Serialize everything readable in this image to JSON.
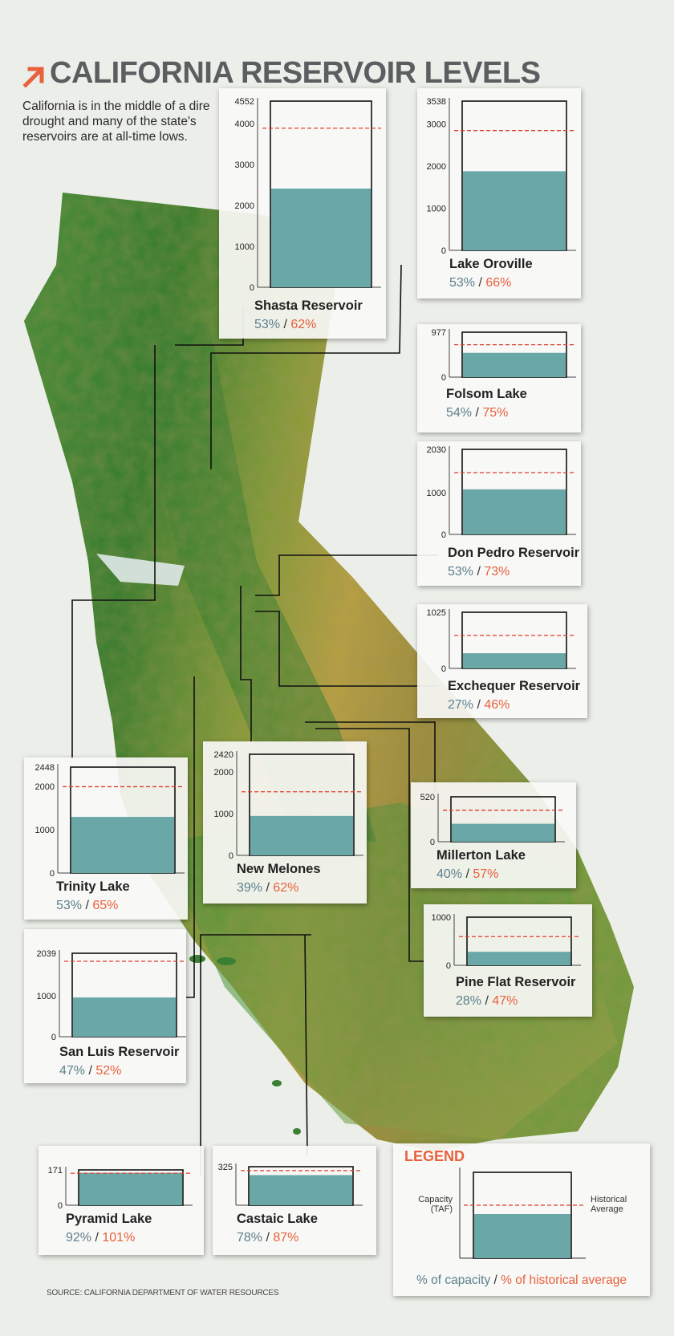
{
  "title": "CALIFORNIA RESERVOIR LEVELS",
  "intro": "California is in the middle of a dire drought and many of the state's reservoirs are at all-time lows.",
  "source": "SOURCE: CALIFORNIA DEPARTMENT OF WATER RESOURCES",
  "colors": {
    "water": "#6aa8a8",
    "average_line": "#e03c2c",
    "accent": "#e8603c",
    "pct_capacity": "#5b7f8c"
  },
  "legend": {
    "title": "LEGEND",
    "capacity_label": "Capacity (TAF)",
    "average_label": "Historical Average",
    "footer_capacity": "% of capacity",
    "footer_sep": " / ",
    "footer_average": "% of historical average"
  },
  "chart_data": [
    {
      "type": "bar",
      "name": "Shasta Reservoir",
      "capacity": 4552,
      "current": 2413,
      "historical_average": 3890,
      "ticks": [
        0,
        1000,
        2000,
        3000,
        4000,
        4552
      ],
      "pct_capacity": "53%",
      "pct_average": "62%"
    },
    {
      "type": "bar",
      "name": "Lake Oroville",
      "capacity": 3538,
      "current": 1875,
      "historical_average": 2840,
      "ticks": [
        0,
        1000,
        2000,
        3000,
        3538
      ],
      "pct_capacity": "53%",
      "pct_average": "66%"
    },
    {
      "type": "bar",
      "name": "Folsom Lake",
      "capacity": 977,
      "current": 528,
      "historical_average": 704,
      "ticks": [
        0,
        977
      ],
      "pct_capacity": "54%",
      "pct_average": "75%"
    },
    {
      "type": "bar",
      "name": "Don Pedro Reservoir",
      "capacity": 2030,
      "current": 1076,
      "historical_average": 1474,
      "ticks": [
        0,
        1000,
        2030
      ],
      "pct_capacity": "53%",
      "pct_average": "73%"
    },
    {
      "type": "bar",
      "name": "Exchequer Reservoir",
      "capacity": 1025,
      "current": 277,
      "historical_average": 602,
      "ticks": [
        0,
        1025
      ],
      "pct_capacity": "27%",
      "pct_average": "46%"
    },
    {
      "type": "bar",
      "name": "Trinity Lake",
      "capacity": 2448,
      "current": 1297,
      "historical_average": 1995,
      "ticks": [
        0,
        1000,
        2000,
        2448
      ],
      "pct_capacity": "53%",
      "pct_average": "65%"
    },
    {
      "type": "bar",
      "name": "New Melones",
      "capacity": 2420,
      "current": 944,
      "historical_average": 1522,
      "ticks": [
        0,
        1000,
        2000,
        2420
      ],
      "pct_capacity": "39%",
      "pct_average": "62%"
    },
    {
      "type": "bar",
      "name": "Millerton Lake",
      "capacity": 520,
      "current": 208,
      "historical_average": 365,
      "ticks": [
        0,
        520
      ],
      "pct_capacity": "40%",
      "pct_average": "57%"
    },
    {
      "type": "bar",
      "name": "Pine Flat Reservoir",
      "capacity": 1000,
      "current": 280,
      "historical_average": 596,
      "ticks": [
        0,
        1000
      ],
      "pct_capacity": "28%",
      "pct_average": "47%"
    },
    {
      "type": "bar",
      "name": "San Luis Reservoir",
      "capacity": 2039,
      "current": 958,
      "historical_average": 1843,
      "ticks": [
        0,
        1000,
        2039
      ],
      "pct_capacity": "47%",
      "pct_average": "52%"
    },
    {
      "type": "bar",
      "name": "Pyramid Lake",
      "capacity": 171,
      "current": 157,
      "historical_average": 155,
      "ticks": [
        0,
        171
      ],
      "pct_capacity": "92%",
      "pct_average": "101%"
    },
    {
      "type": "bar",
      "name": "Castaic Lake",
      "capacity": 325,
      "current": 254,
      "historical_average": 292,
      "ticks": [
        325
      ],
      "pct_capacity": "78%",
      "pct_average": "87%"
    }
  ]
}
